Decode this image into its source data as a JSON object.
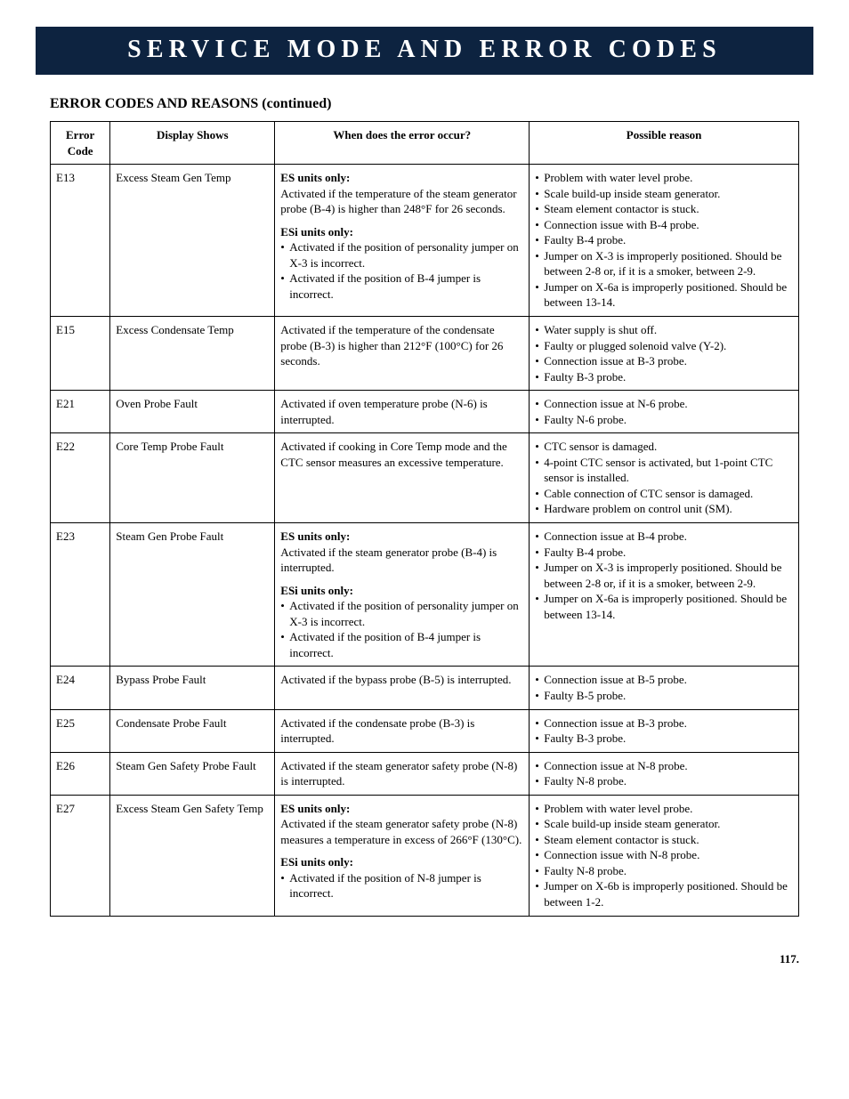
{
  "banner": "SERVICE MODE AND ERROR CODES",
  "subheading": "ERROR CODES AND REASONS (continued)",
  "columns": [
    "Error Code",
    "Display Shows",
    "When does the error occur?",
    "Possible reason"
  ],
  "page_number": "117.",
  "rows": [
    {
      "code": "E13",
      "display": "Excess Steam Gen Temp",
      "when": [
        {
          "heading": "ES units only:",
          "text": "Activated if the temperature of the steam generator probe (B-4) is higher than 248°F for 26 seconds."
        },
        {
          "heading": "ESi units only:",
          "bullets": [
            "Activated if the position of personality jumper on X-3 is incorrect.",
            "Activated if the position of B-4 jumper is incorrect."
          ]
        }
      ],
      "reason": [
        {
          "bullets": [
            "Problem with water level probe.",
            "Scale build-up inside steam generator.",
            "Steam element contactor is stuck.",
            "Connection issue with B-4 probe.",
            "Faulty B-4 probe.",
            "Jumper on X-3 is improperly positioned. Should be between 2-8 or, if it is a smoker, between 2-9.",
            "Jumper on X-6a is improperly positioned. Should be between 13-14."
          ]
        }
      ]
    },
    {
      "code": "E15",
      "display": "Excess Condensate Temp",
      "when": [
        {
          "text": "Activated if the temperature of the condensate probe (B-3) is higher than 212°F (100°C) for 26 seconds."
        }
      ],
      "reason": [
        {
          "bullets": [
            "Water supply is shut off.",
            "Faulty or plugged solenoid valve (Y-2).",
            "Connection issue at B-3 probe.",
            "Faulty B-3 probe."
          ]
        }
      ]
    },
    {
      "code": "E21",
      "display": "Oven Probe Fault",
      "when": [
        {
          "text": "Activated if oven temperature probe (N-6) is interrupted."
        }
      ],
      "reason": [
        {
          "bullets": [
            "Connection issue at N-6 probe.",
            "Faulty N-6 probe."
          ]
        }
      ]
    },
    {
      "code": "E22",
      "display": "Core Temp Probe Fault",
      "when": [
        {
          "text": "Activated if cooking in Core Temp mode and the CTC sensor measures an excessive temperature."
        }
      ],
      "reason": [
        {
          "bullets": [
            "CTC sensor is damaged.",
            "4-point CTC sensor is activated, but 1-point CTC sensor is installed.",
            "Cable connection of CTC sensor is damaged.",
            "Hardware problem on control unit (SM)."
          ]
        }
      ]
    },
    {
      "code": "E23",
      "display": "Steam Gen Probe Fault",
      "when": [
        {
          "heading": "ES units only:",
          "text": "Activated if the steam generator probe (B-4) is interrupted."
        },
        {
          "heading": "ESi units only:",
          "bullets": [
            "Activated if the position of personality jumper on X-3 is incorrect.",
            "Activated if the position of B-4 jumper is incorrect."
          ]
        }
      ],
      "reason": [
        {
          "bullets": [
            "Connection issue at B-4 probe.",
            "Faulty B-4 probe.",
            "Jumper on X-3 is improperly positioned. Should be between 2-8 or, if it is a smoker, between 2-9.",
            "Jumper on X-6a is improperly positioned. Should be between 13-14."
          ]
        }
      ]
    },
    {
      "code": "E24",
      "display": "Bypass Probe Fault",
      "when": [
        {
          "text": "Activated if the bypass probe (B-5) is interrupted."
        }
      ],
      "reason": [
        {
          "bullets": [
            "Connection issue at B-5 probe.",
            "Faulty B-5 probe."
          ]
        }
      ]
    },
    {
      "code": "E25",
      "display": "Condensate Probe Fault",
      "when": [
        {
          "text": "Activated if the condensate probe (B-3) is interrupted."
        }
      ],
      "reason": [
        {
          "bullets": [
            "Connection issue at B-3 probe.",
            "Faulty B-3 probe."
          ]
        }
      ]
    },
    {
      "code": "E26",
      "display": "Steam Gen Safety Probe Fault",
      "when": [
        {
          "text": "Activated if the steam generator safety probe (N-8) is interrupted."
        }
      ],
      "reason": [
        {
          "bullets": [
            "Connection issue at N-8 probe.",
            "Faulty N-8 probe."
          ]
        }
      ]
    },
    {
      "code": "E27",
      "display": "Excess Steam Gen Safety Temp",
      "when": [
        {
          "heading": "ES units only:",
          "text": "Activated if the steam generator safety probe (N-8) measures a temperature in excess of 266°F (130°C)."
        },
        {
          "heading": "ESi units only:",
          "bullets": [
            "Activated if the position of N-8 jumper is incorrect."
          ]
        }
      ],
      "reason": [
        {
          "bullets": [
            "Problem with water level probe.",
            "Scale build-up inside steam generator.",
            "Steam element contactor is stuck.",
            "Connection issue with N-8 probe.",
            "Faulty N-8 probe.",
            "Jumper on X-6b is improperly positioned. Should be between 1-2."
          ]
        }
      ]
    }
  ]
}
